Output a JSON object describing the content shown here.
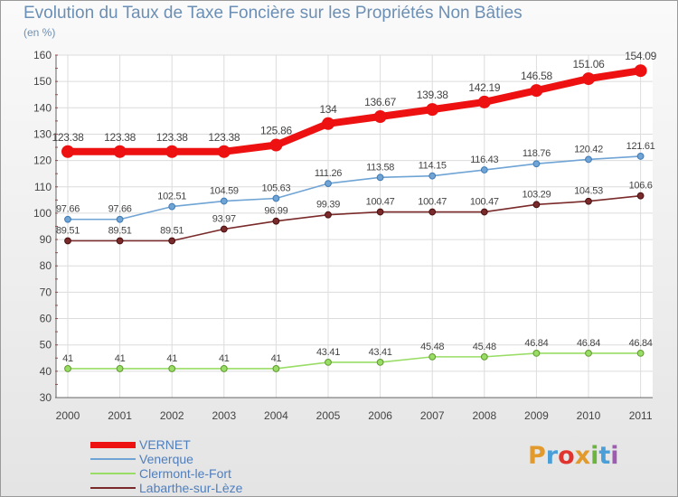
{
  "header": {
    "title": "Evolution du Taux de Taxe Foncière sur les Propriétés Non Bâties",
    "unit": "(en %)"
  },
  "logo": {
    "letters": [
      "P",
      "r",
      "o",
      "x",
      "i",
      "t",
      "i"
    ],
    "colors": [
      "#e39a2c",
      "#4a9fd8",
      "#e2342f",
      "#e39a2c",
      "#6cb33f",
      "#4a9fd8",
      "#9c5db0"
    ]
  },
  "chart_data": {
    "type": "line",
    "title": "Evolution du Taux de Taxe Foncière sur les Propriétés Non Bâties",
    "ylabel": "(en %)",
    "xlabel": "",
    "ylim": [
      30,
      160
    ],
    "yticks": [
      30,
      40,
      50,
      60,
      70,
      80,
      90,
      100,
      110,
      120,
      130,
      140,
      150,
      160
    ],
    "categories": [
      "2000",
      "2001",
      "2002",
      "2003",
      "2004",
      "2005",
      "2006",
      "2007",
      "2008",
      "2009",
      "2010",
      "2011"
    ],
    "grid": true,
    "legend_position": "bottom-left",
    "series": [
      {
        "name": "VERNET",
        "color": "#ee1111",
        "values": [
          123.38,
          123.38,
          123.38,
          123.38,
          125.86,
          134,
          136.67,
          139.38,
          142.19,
          146.58,
          151.06,
          154.09
        ],
        "labels": [
          "123.38",
          "123.38",
          "123.38",
          "123.38",
          "125.86",
          "134",
          "136.67",
          "139.38",
          "142.19",
          "146.58",
          "151.06",
          "154.09"
        ]
      },
      {
        "name": "Venerque",
        "color": "#6fa4d4",
        "values": [
          97.66,
          97.66,
          102.51,
          104.59,
          105.63,
          111.26,
          113.58,
          114.15,
          116.43,
          118.76,
          120.42,
          121.61
        ],
        "labels": [
          "97.66",
          "97.66",
          "102.51",
          "104.59",
          "105.63",
          "111.26",
          "113.58",
          "114.15",
          "116.43",
          "118.76",
          "120.42",
          "121.61"
        ]
      },
      {
        "name": "Clermont-le-Fort",
        "color": "#99dd66",
        "values": [
          41,
          41,
          41,
          41,
          41,
          43.41,
          43.41,
          45.48,
          45.48,
          46.84,
          46.84,
          46.84
        ],
        "labels": [
          "41",
          "41",
          "41",
          "41",
          "41",
          "43.41",
          "43.41",
          "45.48",
          "45.48",
          "46.84",
          "46.84",
          "46.84"
        ]
      },
      {
        "name": "Labarthe-sur-Lèze",
        "color": "#7a2a2a",
        "values": [
          89.51,
          89.51,
          89.51,
          93.97,
          96.99,
          99.39,
          100.47,
          100.47,
          100.47,
          103.29,
          104.53,
          106.6
        ],
        "labels": [
          "89.51",
          "89.51",
          "89.51",
          "93.97",
          "96.99",
          "99.39",
          "100.47",
          "100.47",
          "100.47",
          "103.29",
          "104.53",
          "106.6"
        ]
      }
    ]
  }
}
